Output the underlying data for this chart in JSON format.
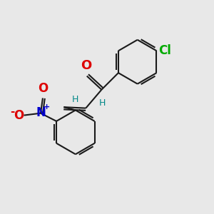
{
  "background_color": "#e8e8e8",
  "bond_color": "#1a1a1a",
  "bond_width": 1.5,
  "cl_color": "#00aa00",
  "o_color": "#dd0000",
  "n_color": "#0000cc",
  "h_color": "#008888",
  "figsize": [
    3.0,
    3.0
  ],
  "dpi": 100,
  "xlim": [
    0,
    10
  ],
  "ylim": [
    0,
    10
  ],
  "font_size_main": 12,
  "font_size_h": 9,
  "font_size_charge": 8
}
